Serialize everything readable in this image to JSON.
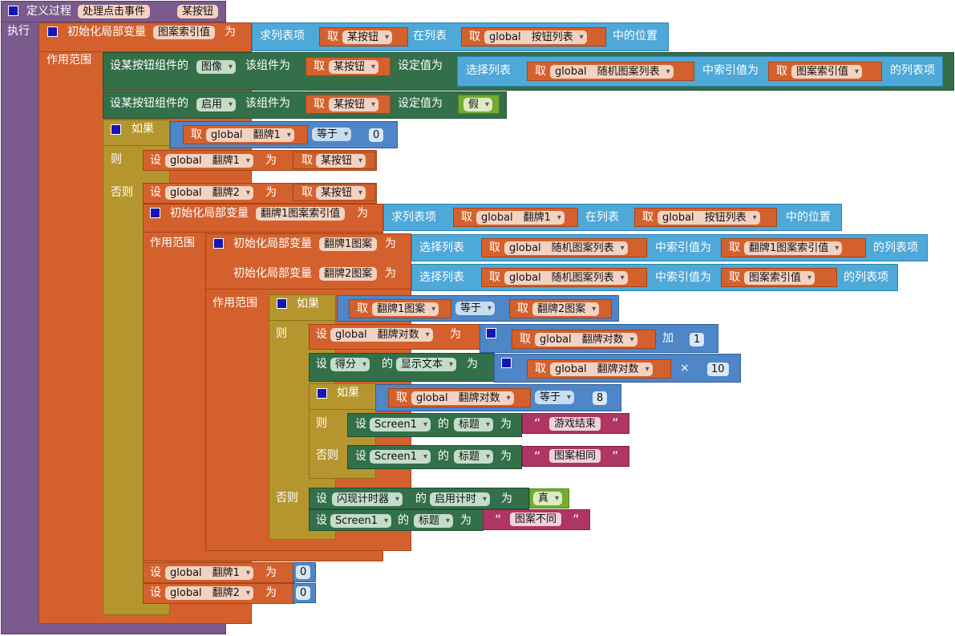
{
  "proc": {
    "keyword": "定义过程",
    "name": "处理点击事件",
    "param": "某按钮",
    "do": "执行",
    "init_local": "初始化局部变量",
    "var_index": "图案索引值",
    "as": "为",
    "scope": "作用范围"
  },
  "idx_expr": {
    "find": "求列表项",
    "get": "取",
    "btn": "某按钮",
    "in_list": "在列表",
    "g_btnlist": "global　按钮列表",
    "pos": "中的位置"
  },
  "set_image": {
    "label": "设某按钮组件的",
    "prop": "图像",
    "comp": "该组件为",
    "setval": "设定值为",
    "select": "选择列表",
    "g_imglist": "global　随机图案列表",
    "at_index": "中索引值为",
    "list_item": "的列表项"
  },
  "set_enabled": {
    "label": "设某按钮组件的",
    "prop": "启用",
    "value": "假"
  },
  "if1": {
    "if": "如果",
    "g_flip1": "global　翻牌1",
    "eq": "等于",
    "zero": "0",
    "then": "则",
    "else": "否则",
    "set": "设",
    "g_flip2": "global　翻牌2"
  },
  "inner": {
    "var_flip1_index": "翻牌1图案索引值",
    "var_flip1_img": "翻牌1图案",
    "var_flip2_img": "翻牌2图案"
  },
  "if2": {
    "g_count": "global　翻牌对数",
    "add": "加",
    "one": "1",
    "score_comp": "得分",
    "of": "的",
    "text_prop": "显示文本",
    "times": "×",
    "ten": "10"
  },
  "if3": {
    "eight": "8",
    "screen": "Screen1",
    "title_prop": "标题",
    "game_over": "游戏结束",
    "same": "图案相同"
  },
  "else2": {
    "timer": "闪现计时器",
    "timer_prop": "启用计时",
    "true_val": "真",
    "different": "图案不同"
  },
  "reset": {
    "zero": "0"
  },
  "quote_open": "“",
  "quote_close": "”"
}
